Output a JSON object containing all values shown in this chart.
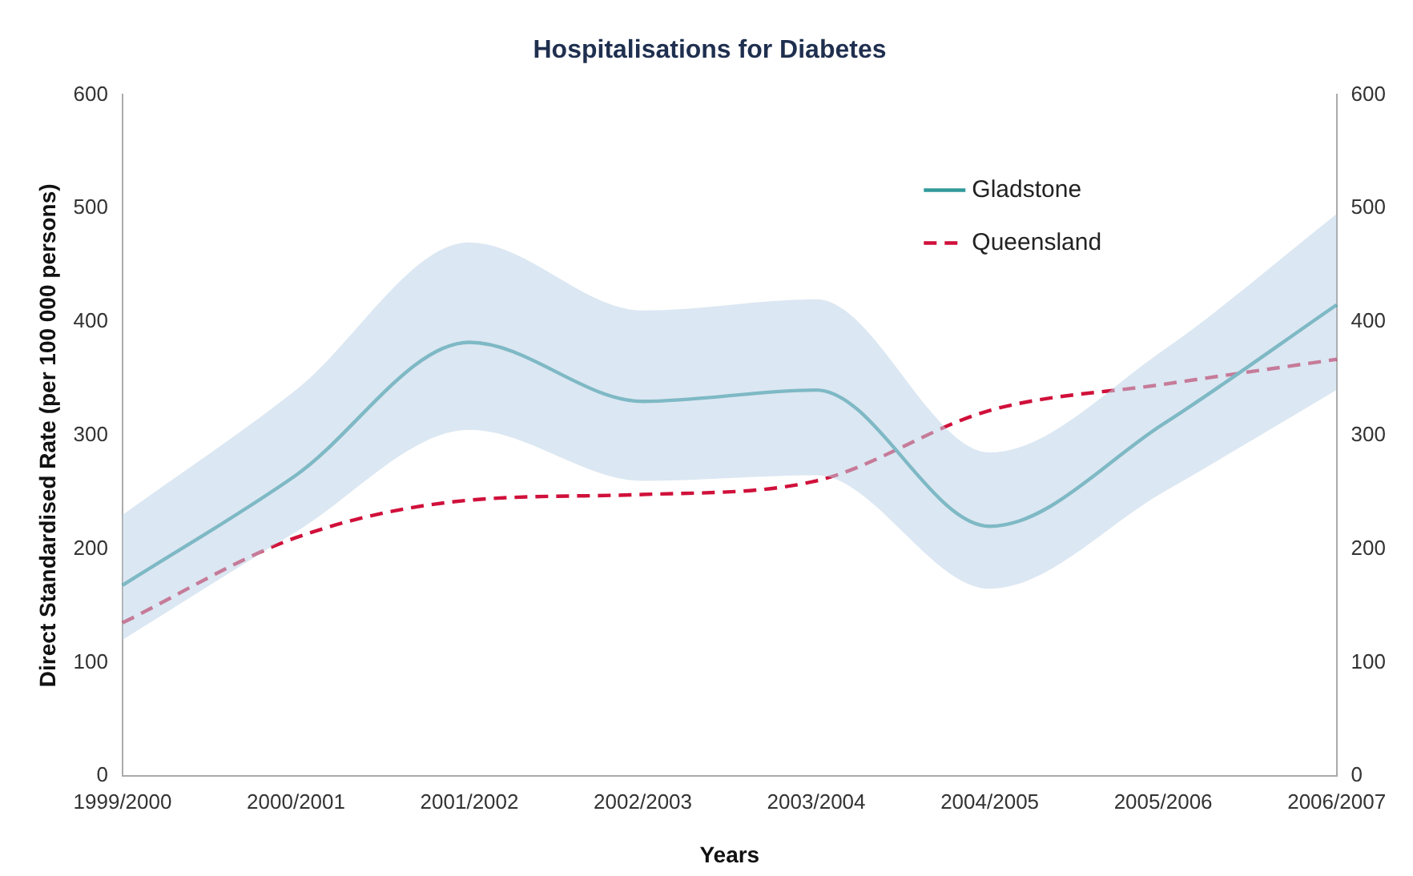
{
  "chart_data": {
    "type": "line",
    "title": "Hospitalisations for Diabetes",
    "xlabel": "Years",
    "ylabel": "Direct Standardised Rate (per 100 000 persons)",
    "categories": [
      "1999/2000",
      "2000/2001",
      "2001/2002",
      "2002/2003",
      "2003/2004",
      "2004/2005",
      "2005/2006",
      "2006/2007"
    ],
    "series": [
      {
        "name": "Gladstone",
        "color": "#31999b",
        "line_style": "solid",
        "values": [
          168,
          265,
          382,
          330,
          340,
          220,
          310,
          415
        ],
        "lower": [
          120,
          215,
          305,
          260,
          265,
          165,
          250,
          340
        ],
        "upper": [
          230,
          340,
          470,
          410,
          420,
          285,
          375,
          495
        ]
      },
      {
        "name": "Queensland",
        "color": "#d0103a",
        "line_style": "dashed",
        "values": [
          135,
          210,
          243,
          248,
          260,
          322,
          345,
          367
        ]
      }
    ],
    "ylim": [
      0,
      600
    ],
    "yticks": [
      0,
      100,
      200,
      300,
      400,
      500,
      600
    ],
    "y2lim": [
      0,
      600
    ],
    "y2ticks": [
      0,
      100,
      200,
      300,
      400,
      500,
      600
    ],
    "grid": false,
    "legend": "top right",
    "marker": "none"
  }
}
